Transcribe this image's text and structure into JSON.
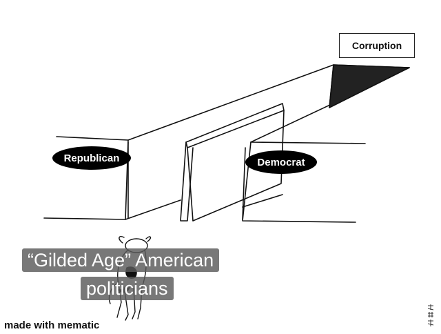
{
  "labels": {
    "republican": "Republican",
    "democrat": "Democrat",
    "corruption": "Corruption"
  },
  "caption": {
    "line1": "“Gilded Age” American",
    "line2": "politicians"
  },
  "watermark": "made with mematic",
  "colors": {
    "background": "#ffffff",
    "ink": "#111111",
    "label_fill": "#000000",
    "label_text": "#ffffff",
    "caption_bg": "#5a5a5a"
  }
}
